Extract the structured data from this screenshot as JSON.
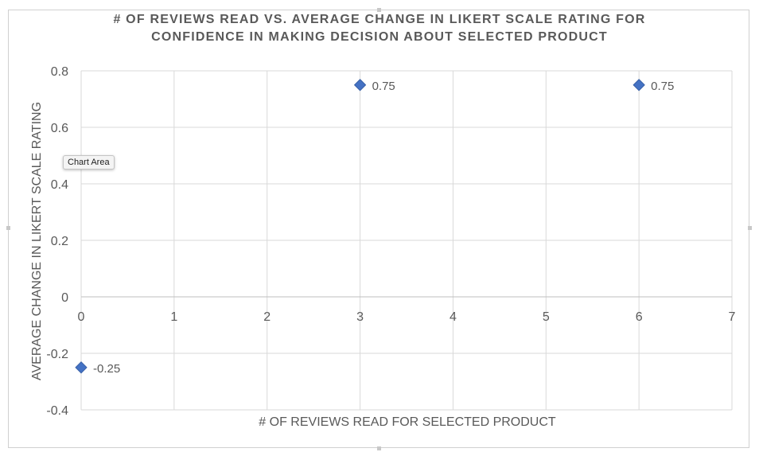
{
  "chart_data": {
    "type": "scatter",
    "title_lines": [
      "# OF REVIEWS READ VS. AVERAGE CHANGE IN LIKERT SCALE RATING FOR",
      "CONFIDENCE IN MAKING DECISION ABOUT SELECTED PRODUCT"
    ],
    "xlabel": "# OF REVIEWS READ FOR SELECTED PRODUCT",
    "ylabel": "AVERAGE CHANGE IN LIKERT SCALE RATING",
    "xlim": [
      0,
      7
    ],
    "ylim": [
      -0.4,
      0.8
    ],
    "x_ticks": [
      "0",
      "1",
      "2",
      "3",
      "4",
      "5",
      "6",
      "7"
    ],
    "y_ticks": [
      "0.8",
      "0.6",
      "0.4",
      "0.2",
      "0",
      "-0.2",
      "-0.4"
    ],
    "grid": true,
    "points": [
      {
        "x": 0,
        "y": -0.25,
        "label": "-0.25"
      },
      {
        "x": 3,
        "y": 0.75,
        "label": "0.75"
      },
      {
        "x": 6,
        "y": 0.75,
        "label": "0.75"
      }
    ],
    "marker_color": "#4472C4",
    "marker_shape": "diamond"
  },
  "tooltip": "Chart Area"
}
